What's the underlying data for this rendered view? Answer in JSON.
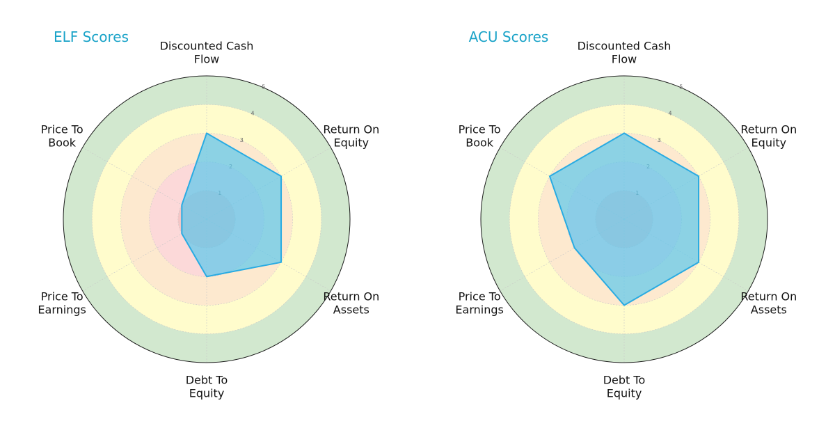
{
  "chart_data": [
    {
      "type": "radar",
      "title": "ELF Scores",
      "title_color": "#1aa3c8",
      "axes": [
        [
          "Discounted Cash",
          "Flow"
        ],
        [
          "Return On",
          "Equity"
        ],
        [
          "Return On",
          "Assets"
        ],
        [
          "Debt To",
          "Equity"
        ],
        [
          "Price To",
          "Earnings"
        ],
        [
          "Price To",
          "Book"
        ]
      ],
      "rlim": [
        0,
        5
      ],
      "rticks": [
        "1",
        "2",
        "3",
        "4",
        "5"
      ],
      "values": [
        3,
        3,
        3,
        2,
        1,
        1
      ],
      "series_color": "#29abe2",
      "fill_color": "#5bc8ec",
      "bands": [
        {
          "from": 0,
          "to": 1,
          "color": "#f4c6c6"
        },
        {
          "from": 1,
          "to": 2,
          "color": "#fcd9d9"
        },
        {
          "from": 2,
          "to": 3,
          "color": "#fde9cf"
        },
        {
          "from": 3,
          "to": 4,
          "color": "#fffccc"
        },
        {
          "from": 4,
          "to": 5,
          "color": "#d2e8cf"
        }
      ]
    },
    {
      "type": "radar",
      "title": "ACU Scores",
      "title_color": "#1aa3c8",
      "axes": [
        [
          "Discounted Cash",
          "Flow"
        ],
        [
          "Return On",
          "Equity"
        ],
        [
          "Return On",
          "Assets"
        ],
        [
          "Debt To",
          "Equity"
        ],
        [
          "Price To",
          "Earnings"
        ],
        [
          "Price To",
          "Book"
        ]
      ],
      "rlim": [
        0,
        5
      ],
      "rticks": [
        "1",
        "2",
        "3",
        "4",
        "5"
      ],
      "values": [
        3,
        3,
        3,
        3,
        2,
        3
      ],
      "series_color": "#29abe2",
      "fill_color": "#5bc8ec",
      "bands": [
        {
          "from": 0,
          "to": 1,
          "color": "#f4c6c6"
        },
        {
          "from": 1,
          "to": 2,
          "color": "#fcd9d9"
        },
        {
          "from": 2,
          "to": 3,
          "color": "#fde9cf"
        },
        {
          "from": 3,
          "to": 4,
          "color": "#fffccc"
        },
        {
          "from": 4,
          "to": 5,
          "color": "#d2e8cf"
        }
      ]
    }
  ]
}
